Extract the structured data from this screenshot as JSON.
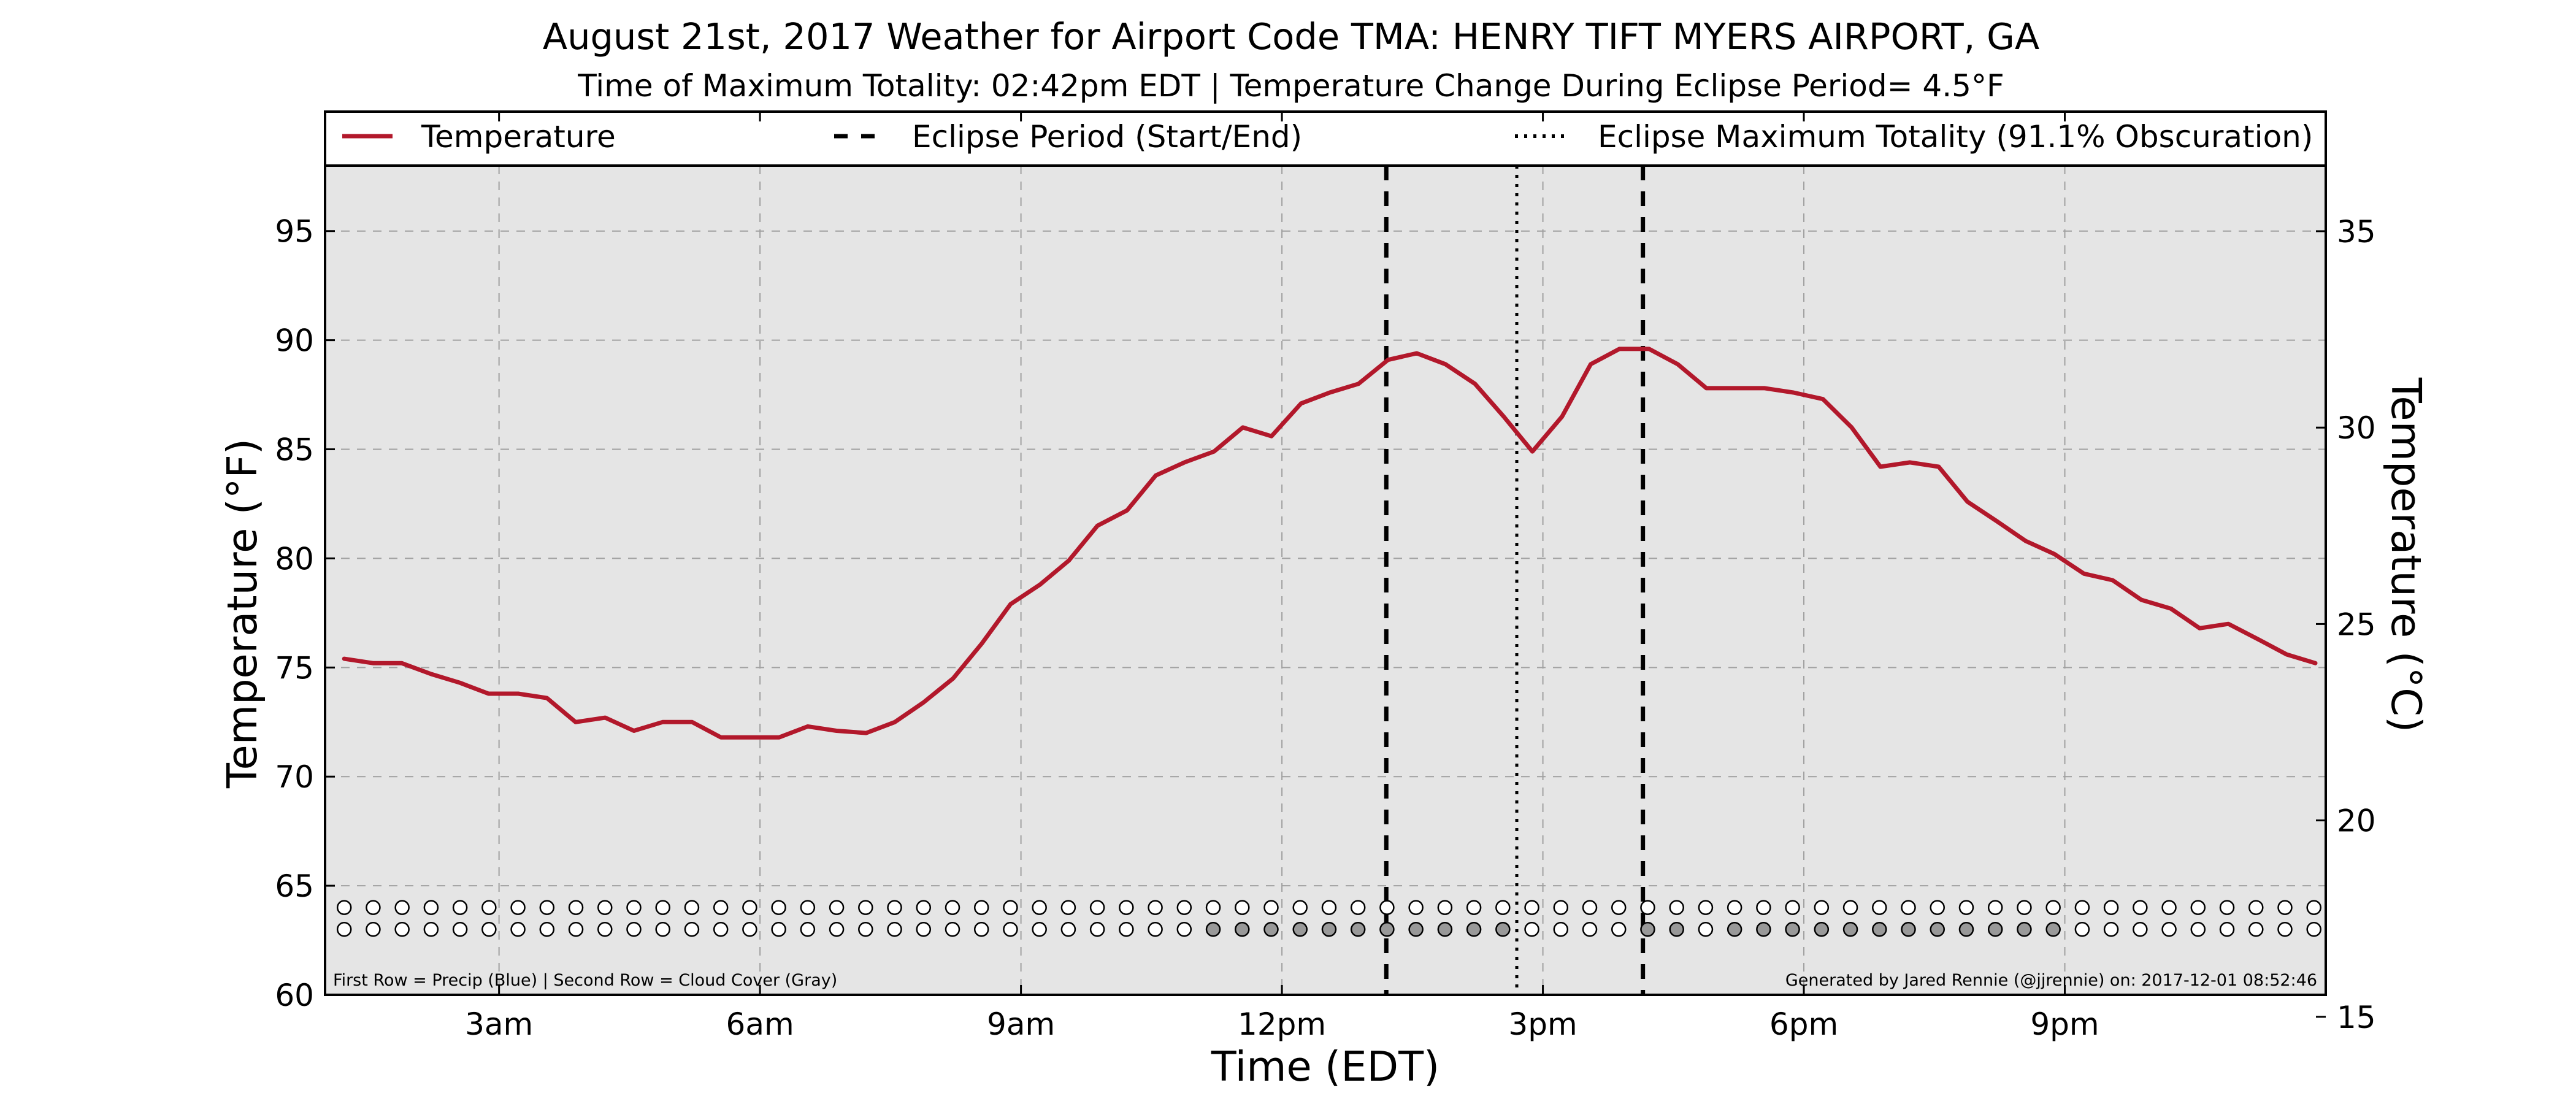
{
  "chart_data": {
    "type": "line",
    "title": "August 21st, 2017 Weather for Airport Code TMA: HENRY TIFT MYERS AIRPORT, GA",
    "subtitle": "Time of Maximum Totality: 02:42pm EDT | Temperature Change During Eclipse Period= 4.5°F",
    "xlabel": "Time (EDT)",
    "ylabel": "Temperature (°F)",
    "y2label": "Temperature (°C)",
    "xlim": [
      1.0,
      24.0
    ],
    "ylim": [
      60,
      98
    ],
    "y2lim": [
      15.56,
      36.67
    ],
    "x_ticks": [
      {
        "x": 3,
        "label": "3am"
      },
      {
        "x": 6,
        "label": "6am"
      },
      {
        "x": 9,
        "label": "9am"
      },
      {
        "x": 12,
        "label": "12pm"
      },
      {
        "x": 15,
        "label": "3pm"
      },
      {
        "x": 18,
        "label": "6pm"
      },
      {
        "x": 21,
        "label": "9pm"
      }
    ],
    "y_ticks": [
      60,
      65,
      70,
      75,
      80,
      85,
      90,
      95
    ],
    "y2_ticks": [
      15,
      20,
      25,
      30,
      35
    ],
    "grid": true,
    "legend_position": "top",
    "legend": [
      {
        "label": "Temperature",
        "style": "solid"
      },
      {
        "label": "Eclipse Period (Start/End)",
        "style": "dashed"
      },
      {
        "label": "Eclipse Maximum Totality (91.1% Obscuration)",
        "style": "dotted"
      }
    ],
    "series": [
      {
        "name": "Temperature",
        "color": "#b2182b",
        "x": [
          1.22,
          1.55,
          1.88,
          2.22,
          2.55,
          2.88,
          3.22,
          3.55,
          3.88,
          4.22,
          4.55,
          4.88,
          5.22,
          5.55,
          5.88,
          6.22,
          6.55,
          6.88,
          7.22,
          7.55,
          7.88,
          8.22,
          8.55,
          8.88,
          9.22,
          9.55,
          9.88,
          10.22,
          10.55,
          10.88,
          11.22,
          11.55,
          11.88,
          12.22,
          12.55,
          12.88,
          13.22,
          13.55,
          13.88,
          14.22,
          14.55,
          14.88,
          15.22,
          15.55,
          15.88,
          16.22,
          16.55,
          16.88,
          17.22,
          17.55,
          17.88,
          18.22,
          18.55,
          18.88,
          19.22,
          19.55,
          19.88,
          20.22,
          20.55,
          20.88,
          21.22,
          21.55,
          21.88,
          22.22,
          22.55,
          22.88,
          23.22,
          23.55,
          23.88
        ],
        "values": [
          75.4,
          75.2,
          75.2,
          74.7,
          74.3,
          73.8,
          73.8,
          73.6,
          72.5,
          72.7,
          72.1,
          72.5,
          72.5,
          71.8,
          71.8,
          71.8,
          72.3,
          72.1,
          72.0,
          72.5,
          73.4,
          74.5,
          76.1,
          77.9,
          78.8,
          79.9,
          81.5,
          82.2,
          83.8,
          84.4,
          84.9,
          86.0,
          85.6,
          87.1,
          87.6,
          88.0,
          89.1,
          89.4,
          88.9,
          88.0,
          86.5,
          84.9,
          86.5,
          88.9,
          89.6,
          89.6,
          88.9,
          87.8,
          87.8,
          87.8,
          87.6,
          87.3,
          86.0,
          84.2,
          84.4,
          84.2,
          82.6,
          81.7,
          80.8,
          80.2,
          79.3,
          79.0,
          78.1,
          77.7,
          76.8,
          77.0,
          76.3,
          75.6,
          75.2
        ]
      }
    ],
    "eclipse_period": {
      "start": 13.2,
      "end": 16.15,
      "max_totality": 14.7
    },
    "precip_row": {
      "y": 64.0,
      "x_start": 1.22,
      "step": 0.333,
      "count": 69,
      "filled": []
    },
    "cloud_row": {
      "y": 63.0,
      "x_start": 1.22,
      "step": 0.333,
      "count": 69,
      "filled": [
        30,
        31,
        32,
        33,
        34,
        35,
        36,
        37,
        38,
        39,
        40,
        45,
        46,
        48,
        49,
        50,
        51,
        52,
        53,
        54,
        55,
        56,
        57,
        58,
        59
      ]
    },
    "colors": {
      "line": "#b2182b",
      "plot_bg": "#e5e5e5",
      "cloud_fill": "#999999",
      "grid": "#a0a0a0"
    },
    "footnote_left": "First Row = Precip (Blue) | Second Row = Cloud Cover (Gray)",
    "footnote_right": "Generated by Jared Rennie (@jjrennie) on: 2017-12-01 08:52:46"
  }
}
